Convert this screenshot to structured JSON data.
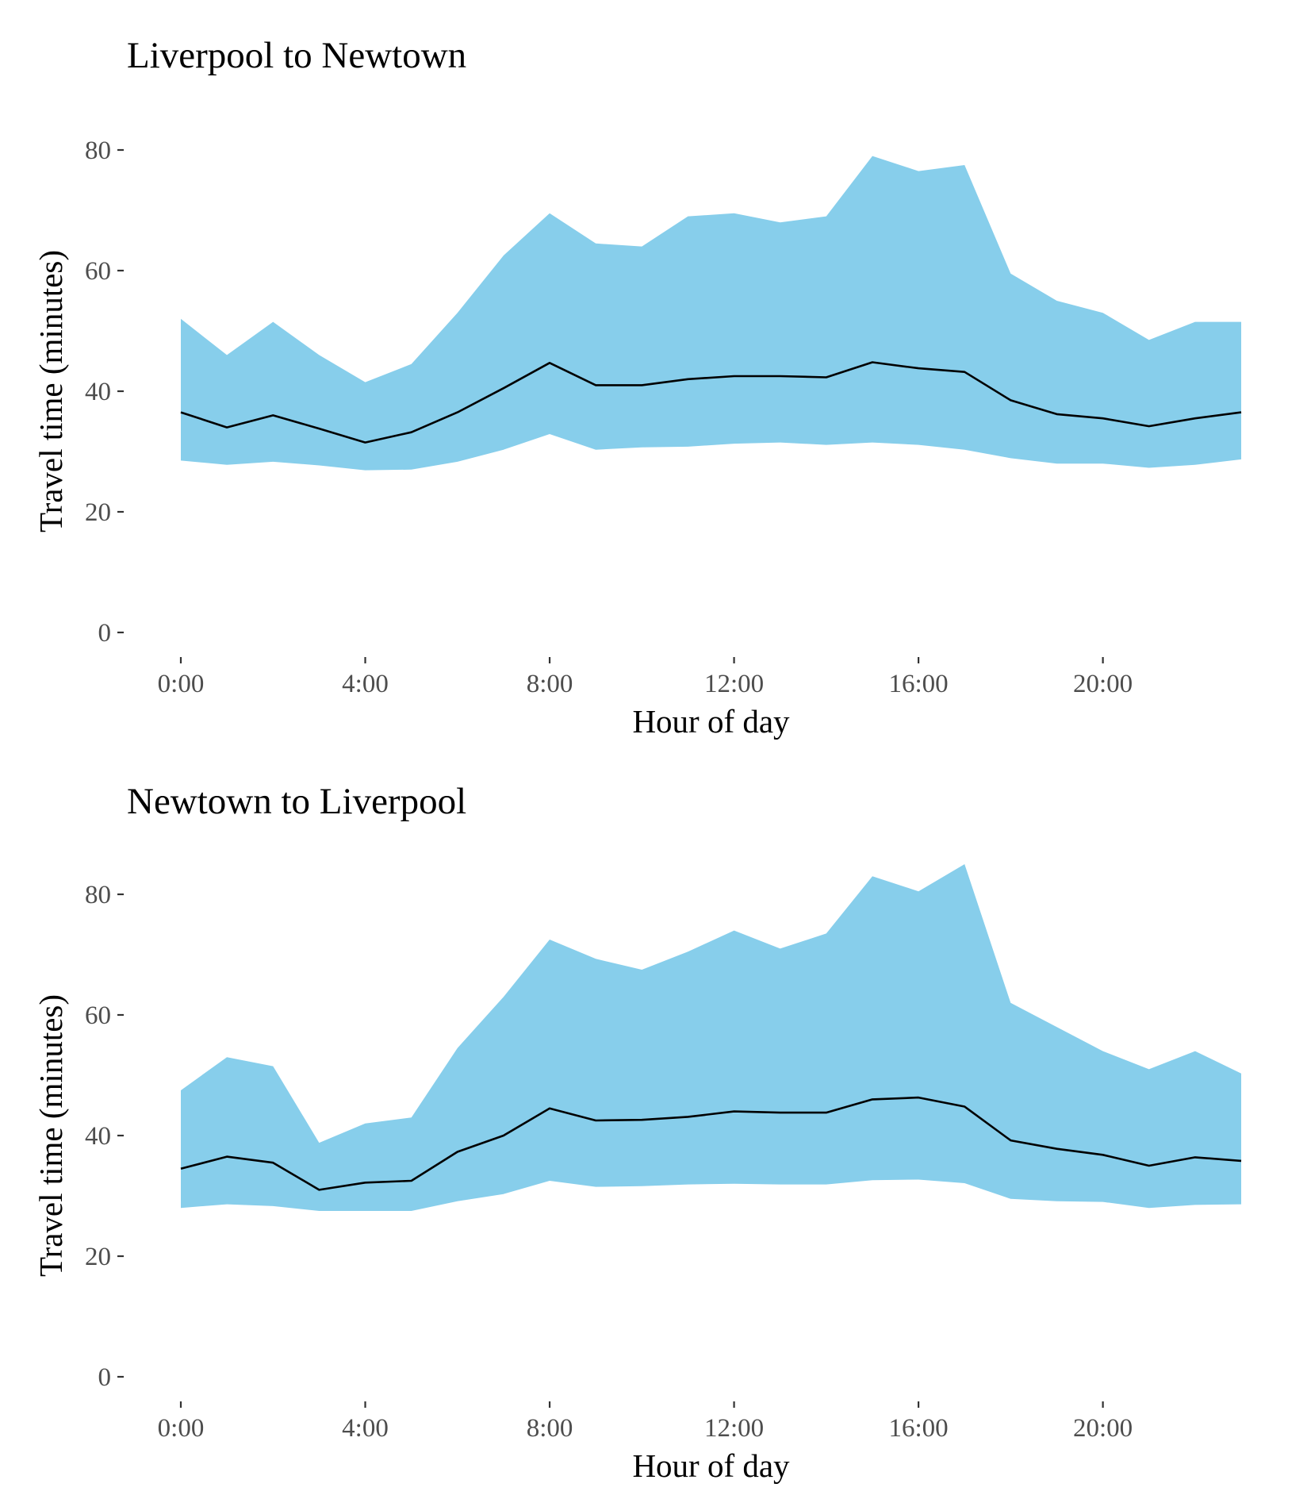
{
  "colors": {
    "band": "#87CEEB",
    "line": "#000000"
  },
  "chart_data": [
    {
      "type": "area",
      "title": "Liverpool to Newtown",
      "xlabel": "Hour of day",
      "ylabel": "Travel time (minutes)",
      "ylim": [
        0,
        85
      ],
      "xlim": [
        0,
        23
      ],
      "x_ticks": [
        {
          "value": 0,
          "label": "0:00"
        },
        {
          "value": 4,
          "label": "4:00"
        },
        {
          "value": 8,
          "label": "8:00"
        },
        {
          "value": 12,
          "label": "12:00"
        },
        {
          "value": 16,
          "label": "16:00"
        },
        {
          "value": 20,
          "label": "20:00"
        }
      ],
      "y_ticks": [
        {
          "value": 0,
          "label": "0"
        },
        {
          "value": 20,
          "label": "20"
        },
        {
          "value": 40,
          "label": "40"
        },
        {
          "value": 60,
          "label": "60"
        },
        {
          "value": 80,
          "label": "80"
        }
      ],
      "grid": false,
      "x": [
        0,
        1,
        2,
        3,
        4,
        5,
        6,
        7,
        8,
        9,
        10,
        11,
        12,
        13,
        14,
        15,
        16,
        17,
        18,
        19,
        20,
        21,
        22,
        23
      ],
      "series": [
        {
          "role": "upper",
          "values": [
            52,
            46,
            51.5,
            46,
            41.5,
            44.5,
            53,
            62.5,
            69.5,
            64.5,
            64,
            69,
            69.5,
            68,
            69,
            79,
            76.5,
            77.5,
            59.5,
            55,
            53,
            48.5,
            51.5,
            51.5
          ]
        },
        {
          "role": "median",
          "values": [
            36.5,
            34,
            36,
            33.8,
            31.5,
            33.2,
            36.5,
            40.5,
            44.7,
            41,
            41,
            42,
            42.5,
            42.5,
            42.3,
            44.8,
            43.8,
            43.2,
            38.5,
            36.2,
            35.5,
            34.2,
            35.5,
            36.5
          ]
        },
        {
          "role": "lower",
          "values": [
            28.5,
            27.8,
            28.3,
            27.7,
            26.9,
            27,
            28.3,
            30.3,
            32.9,
            30.3,
            30.7,
            30.8,
            31.3,
            31.5,
            31.1,
            31.5,
            31.1,
            30.3,
            28.9,
            28,
            28,
            27.3,
            27.8,
            28.7
          ]
        }
      ]
    },
    {
      "type": "area",
      "title": "Newtown to Liverpool",
      "xlabel": "Hour of day",
      "ylabel": "Travel time (minutes)",
      "ylim": [
        0,
        85
      ],
      "xlim": [
        0,
        23
      ],
      "x_ticks": [
        {
          "value": 0,
          "label": "0:00"
        },
        {
          "value": 4,
          "label": "4:00"
        },
        {
          "value": 8,
          "label": "8:00"
        },
        {
          "value": 12,
          "label": "12:00"
        },
        {
          "value": 16,
          "label": "16:00"
        },
        {
          "value": 20,
          "label": "20:00"
        }
      ],
      "y_ticks": [
        {
          "value": 0,
          "label": "0"
        },
        {
          "value": 20,
          "label": "20"
        },
        {
          "value": 40,
          "label": "40"
        },
        {
          "value": 60,
          "label": "60"
        },
        {
          "value": 80,
          "label": "80"
        }
      ],
      "grid": false,
      "x": [
        0,
        1,
        2,
        3,
        4,
        5,
        6,
        7,
        8,
        9,
        10,
        11,
        12,
        13,
        14,
        15,
        16,
        17,
        18,
        19,
        20,
        21,
        22,
        23
      ],
      "series": [
        {
          "role": "upper",
          "values": [
            47.5,
            53,
            51.5,
            38.8,
            42,
            43,
            54.5,
            63,
            72.5,
            69.3,
            67.5,
            70.5,
            74,
            71,
            73.5,
            83,
            80.5,
            85,
            62,
            58,
            54,
            51,
            54,
            50.3
          ]
        },
        {
          "role": "median",
          "values": [
            34.5,
            36.5,
            35.5,
            31,
            32.2,
            32.5,
            37.3,
            40,
            44.5,
            42.5,
            42.6,
            43.1,
            44,
            43.8,
            43.8,
            46,
            46.3,
            44.8,
            39.2,
            37.8,
            36.8,
            35,
            36.4,
            35.8
          ]
        },
        {
          "role": "lower",
          "values": [
            28,
            28.6,
            28.3,
            27.5,
            27.5,
            27.5,
            29.1,
            30.3,
            32.5,
            31.5,
            31.6,
            31.9,
            32,
            31.9,
            31.9,
            32.6,
            32.7,
            32.1,
            29.5,
            29.1,
            29,
            28,
            28.5,
            28.6
          ]
        }
      ]
    }
  ]
}
